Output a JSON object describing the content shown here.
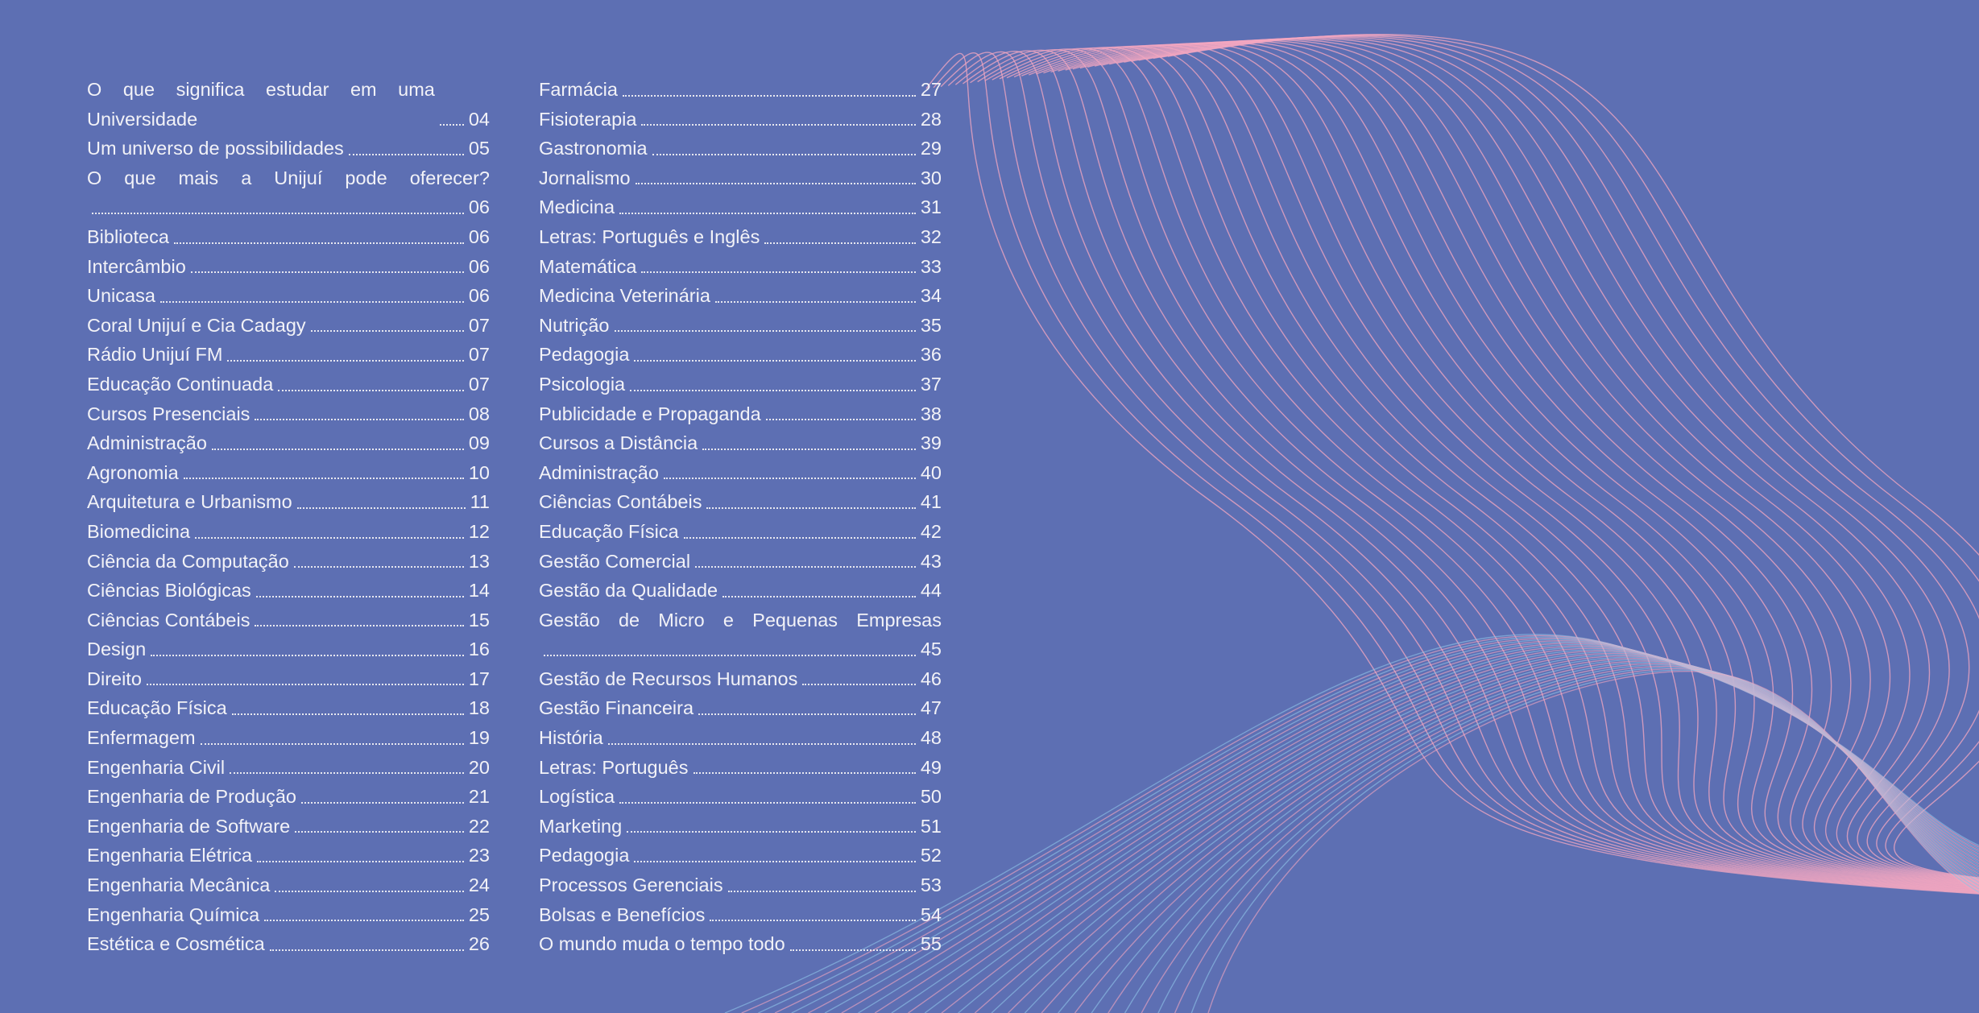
{
  "toc": {
    "columns": [
      {
        "entries": [
          {
            "title": "O que significa estudar em uma Universidade",
            "page": "04"
          },
          {
            "title": "Um universo de possibilidades",
            "page": "05"
          },
          {
            "title": "O que mais a Unijuí pode oferecer?",
            "page": "06"
          },
          {
            "title": "Biblioteca",
            "page": "06"
          },
          {
            "title": "Intercâmbio",
            "page": "06"
          },
          {
            "title": "Unicasa",
            "page": "06"
          },
          {
            "title": "Coral Unijuí e Cia Cadagy",
            "page": "07"
          },
          {
            "title": "Rádio Unijuí FM",
            "page": "07"
          },
          {
            "title": "Educação Continuada",
            "page": "07"
          },
          {
            "title": "Cursos Presenciais",
            "page": "08"
          },
          {
            "title": "Administração",
            "page": "09"
          },
          {
            "title": "Agronomia",
            "page": "10"
          },
          {
            "title": "Arquitetura e Urbanismo",
            "page": "11"
          },
          {
            "title": "Biomedicina",
            "page": "12"
          },
          {
            "title": "Ciência da Computação",
            "page": "13"
          },
          {
            "title": "Ciências Biológicas",
            "page": "14"
          },
          {
            "title": "Ciências Contábeis",
            "page": "15"
          },
          {
            "title": "Design",
            "page": "16"
          },
          {
            "title": "Direito",
            "page": "17"
          },
          {
            "title": "Educação Física",
            "page": "18"
          },
          {
            "title": "Enfermagem",
            "page": "19"
          },
          {
            "title": "Engenharia Civil",
            "page": "20"
          },
          {
            "title": "Engenharia de Produção",
            "page": "21"
          },
          {
            "title": "Engenharia de Software",
            "page": "22"
          },
          {
            "title": "Engenharia Elétrica",
            "page": "23"
          },
          {
            "title": "Engenharia Mecânica",
            "page": "24"
          },
          {
            "title": "Engenharia Química",
            "page": "25"
          },
          {
            "title": "Estética e Cosmética",
            "page": "26"
          }
        ]
      },
      {
        "entries": [
          {
            "title": "Farmácia",
            "page": "27"
          },
          {
            "title": "Fisioterapia",
            "page": "28"
          },
          {
            "title": "Gastronomia",
            "page": "29"
          },
          {
            "title": "Jornalismo",
            "page": "30"
          },
          {
            "title": "Medicina",
            "page": "31"
          },
          {
            "title": "Letras: Português e Inglês",
            "page": "32"
          },
          {
            "title": "Matemática",
            "page": "33"
          },
          {
            "title": "Medicina Veterinária",
            "page": "34"
          },
          {
            "title": "Nutrição",
            "page": "35"
          },
          {
            "title": "Pedagogia",
            "page": "36"
          },
          {
            "title": "Psicologia",
            "page": "37"
          },
          {
            "title": "Publicidade e Propaganda",
            "page": "38"
          },
          {
            "title": "Cursos a Distância",
            "page": "39"
          },
          {
            "title": "Administração",
            "page": "40"
          },
          {
            "title": "Ciências Contábeis",
            "page": "41"
          },
          {
            "title": "Educação Física",
            "page": "42"
          },
          {
            "title": "Gestão Comercial",
            "page": "43"
          },
          {
            "title": "Gestão da Qualidade",
            "page": "44"
          },
          {
            "title": "Gestão de Micro e Pequenas Empresas",
            "page": "45"
          },
          {
            "title": "Gestão de Recursos Humanos",
            "page": "46"
          },
          {
            "title": "Gestão Financeira",
            "page": "47"
          },
          {
            "title": "História",
            "page": "48"
          },
          {
            "title": "Letras: Português",
            "page": "49"
          },
          {
            "title": "Logística",
            "page": "50"
          },
          {
            "title": "Marketing",
            "page": "51"
          },
          {
            "title": "Pedagogia",
            "page": "52"
          },
          {
            "title": "Processos Gerenciais",
            "page": "53"
          },
          {
            "title": "Bolsas e Benefícios",
            "page": "54"
          },
          {
            "title": "O mundo muda o tempo todo",
            "page": "55"
          }
        ]
      }
    ]
  }
}
